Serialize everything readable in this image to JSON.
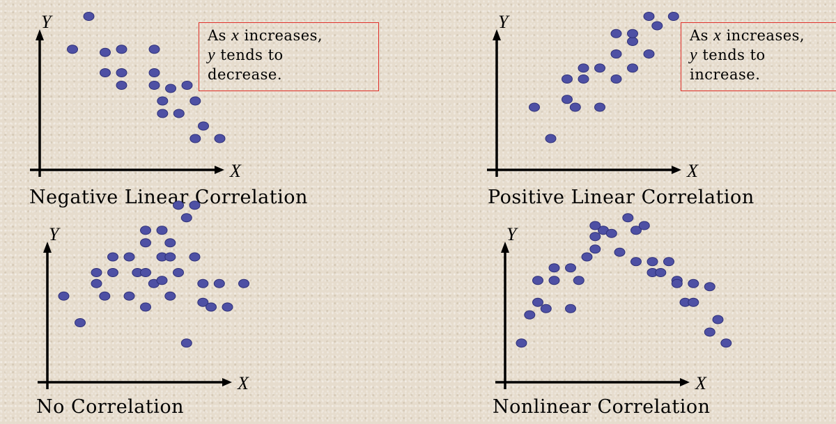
{
  "chart_data": [
    {
      "type": "scatter",
      "title": "Negative Linear Correlation",
      "xlabel": "X",
      "ylabel": "Y",
      "annotation": [
        "As x increases,",
        "y tends to",
        "decrease."
      ],
      "points": [
        [
          4,
          11.8
        ],
        [
          3,
          9.7
        ],
        [
          5,
          9.5
        ],
        [
          6,
          9.7
        ],
        [
          8,
          9.7
        ],
        [
          5,
          8.2
        ],
        [
          6,
          8.2
        ],
        [
          8,
          8.2
        ],
        [
          6,
          7.4
        ],
        [
          8,
          7.4
        ],
        [
          9,
          7.2
        ],
        [
          10,
          7.4
        ],
        [
          8.5,
          6.4
        ],
        [
          10.5,
          6.4
        ],
        [
          8.5,
          5.6
        ],
        [
          9.5,
          5.6
        ],
        [
          11,
          4.8
        ],
        [
          10.5,
          4
        ],
        [
          12,
          4
        ]
      ]
    },
    {
      "type": "scatter",
      "title": "Positive Linear Correlation",
      "xlabel": "X",
      "ylabel": "Y",
      "annotation": [
        "As x increases,",
        "y tends to",
        "increase."
      ],
      "points": [
        [
          3,
          6
        ],
        [
          4,
          4
        ],
        [
          5,
          6.5
        ],
        [
          5.5,
          6
        ],
        [
          7,
          6
        ],
        [
          5,
          7.8
        ],
        [
          6,
          7.8
        ],
        [
          6,
          8.5
        ],
        [
          7,
          8.5
        ],
        [
          8,
          7.8
        ],
        [
          9,
          8.5
        ],
        [
          8,
          9.4
        ],
        [
          9,
          10.2
        ],
        [
          8,
          10.7
        ],
        [
          9,
          10.7
        ],
        [
          10,
          9.4
        ],
        [
          10.5,
          11.2
        ],
        [
          10,
          11.8
        ],
        [
          11.5,
          11.8
        ]
      ]
    },
    {
      "type": "scatter",
      "title": "No Correlation",
      "xlabel": "X",
      "ylabel": "Y",
      "points": [
        [
          1,
          4
        ],
        [
          2,
          2.3
        ],
        [
          3,
          4.8
        ],
        [
          3.5,
          4
        ],
        [
          3,
          5.5
        ],
        [
          4,
          5.5
        ],
        [
          4,
          6.5
        ],
        [
          5,
          6.5
        ],
        [
          5,
          4
        ],
        [
          5.5,
          5.5
        ],
        [
          6,
          5.5
        ],
        [
          6,
          3.3
        ],
        [
          6.5,
          4.8
        ],
        [
          7,
          6.5
        ],
        [
          7.5,
          6.5
        ],
        [
          8,
          5.5
        ],
        [
          6,
          7.4
        ],
        [
          6,
          8.2
        ],
        [
          7,
          8.2
        ],
        [
          7.5,
          7.4
        ],
        [
          7.5,
          4
        ],
        [
          7,
          5
        ],
        [
          9,
          6.5
        ],
        [
          8,
          9.8
        ],
        [
          9,
          9.8
        ],
        [
          8.5,
          9
        ],
        [
          8.5,
          1
        ],
        [
          9.5,
          3.6
        ],
        [
          10,
          3.3
        ],
        [
          9.5,
          4.8
        ],
        [
          10.5,
          4.8
        ],
        [
          11,
          3.3
        ],
        [
          12,
          4.8
        ]
      ]
    },
    {
      "type": "scatter",
      "title": "Nonlinear Correlation",
      "xlabel": "X",
      "ylabel": "Y",
      "points": [
        [
          2.5,
          1
        ],
        [
          3,
          2.8
        ],
        [
          3.5,
          3.6
        ],
        [
          4,
          3.2
        ],
        [
          3.5,
          5
        ],
        [
          4.5,
          5
        ],
        [
          4.5,
          5.8
        ],
        [
          5.5,
          5.8
        ],
        [
          5.5,
          3.2
        ],
        [
          6,
          5
        ],
        [
          6.5,
          6.5
        ],
        [
          7,
          7
        ],
        [
          7,
          7.8
        ],
        [
          7.5,
          8.2
        ],
        [
          7,
          8.5
        ],
        [
          8,
          8
        ],
        [
          8.5,
          6.8
        ],
        [
          9,
          9
        ],
        [
          9.5,
          8.2
        ],
        [
          10,
          8.5
        ],
        [
          9.5,
          6.2
        ],
        [
          10.5,
          6.2
        ],
        [
          10.5,
          5.5
        ],
        [
          11,
          5.5
        ],
        [
          11.5,
          6.2
        ],
        [
          12,
          5
        ],
        [
          12.5,
          3.6
        ],
        [
          12,
          4.8
        ],
        [
          13,
          3.6
        ],
        [
          13,
          4.8
        ],
        [
          14,
          4.6
        ],
        [
          14.5,
          2.5
        ],
        [
          14,
          1.7
        ],
        [
          15,
          1
        ]
      ]
    }
  ]
}
